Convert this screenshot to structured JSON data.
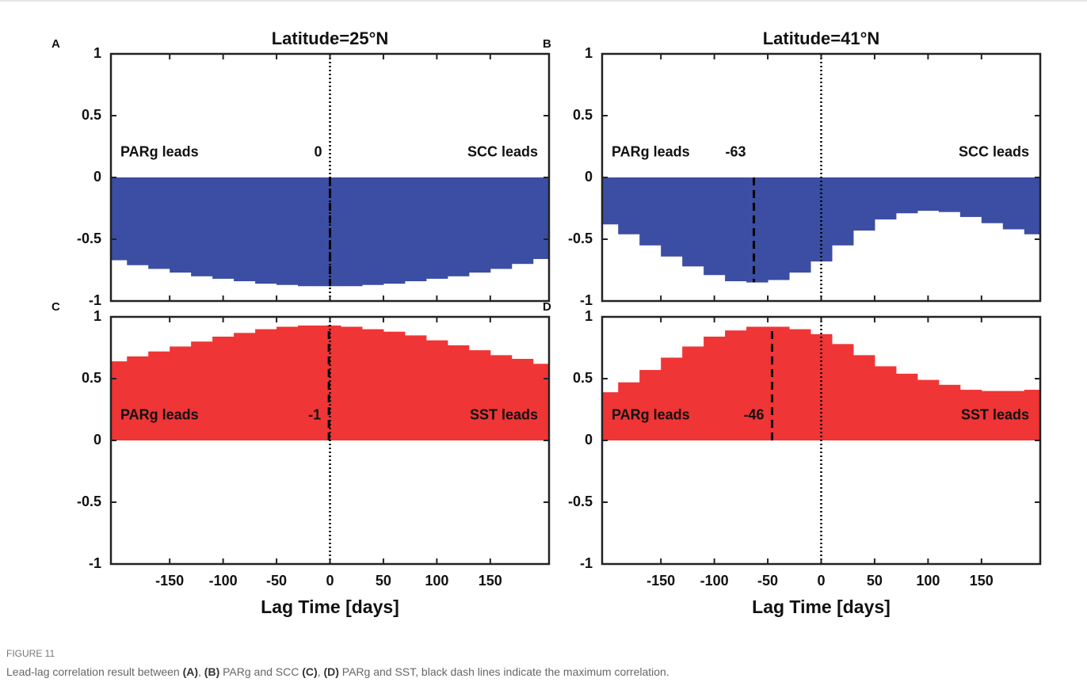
{
  "chart_data": [
    {
      "type": "bar",
      "panel": "A",
      "title": "Latitude=25°N",
      "color": "#3b4ea3",
      "x": [
        -200,
        -180,
        -160,
        -140,
        -120,
        -100,
        -80,
        -60,
        -40,
        -20,
        0,
        20,
        40,
        60,
        80,
        100,
        120,
        140,
        160,
        180,
        200
      ],
      "values": [
        -0.67,
        -0.71,
        -0.74,
        -0.77,
        -0.8,
        -0.82,
        -0.84,
        -0.86,
        -0.87,
        -0.88,
        -0.88,
        -0.88,
        -0.87,
        -0.86,
        -0.84,
        -0.82,
        -0.8,
        -0.77,
        -0.74,
        -0.7,
        -0.66
      ],
      "xlim": [
        -205,
        205
      ],
      "ylim": [
        -1,
        1
      ],
      "xticks": [
        -150,
        -100,
        -50,
        0,
        50,
        100,
        150
      ],
      "yticks": [
        -1,
        -0.5,
        0,
        0.5,
        1
      ],
      "show_xtick_labels": false,
      "left_note": "PARg leads",
      "right_note": "SCC leads",
      "max_lag": 0,
      "reference_x": 0
    },
    {
      "type": "bar",
      "panel": "B",
      "title": "Latitude=41°N",
      "color": "#3b4ea3",
      "x": [
        -200,
        -180,
        -160,
        -140,
        -120,
        -100,
        -80,
        -60,
        -40,
        -20,
        0,
        20,
        40,
        60,
        80,
        100,
        120,
        140,
        160,
        180,
        200
      ],
      "values": [
        -0.38,
        -0.46,
        -0.55,
        -0.64,
        -0.72,
        -0.79,
        -0.84,
        -0.85,
        -0.83,
        -0.77,
        -0.68,
        -0.55,
        -0.43,
        -0.34,
        -0.29,
        -0.27,
        -0.28,
        -0.32,
        -0.37,
        -0.42,
        -0.46
      ],
      "xlim": [
        -205,
        205
      ],
      "ylim": [
        -1,
        1
      ],
      "xticks": [
        -150,
        -100,
        -50,
        0,
        50,
        100,
        150
      ],
      "yticks": [
        -1,
        -0.5,
        0,
        0.5,
        1
      ],
      "show_xtick_labels": false,
      "left_note": "PARg leads",
      "right_note": "SCC leads",
      "max_lag": -63,
      "reference_x": 0
    },
    {
      "type": "bar",
      "panel": "C",
      "color": "#ef3535",
      "xlabel": "Lag Time [days]",
      "x": [
        -200,
        -180,
        -160,
        -140,
        -120,
        -100,
        -80,
        -60,
        -40,
        -20,
        0,
        20,
        40,
        60,
        80,
        100,
        120,
        140,
        160,
        180,
        200
      ],
      "values": [
        0.64,
        0.68,
        0.72,
        0.76,
        0.8,
        0.84,
        0.87,
        0.9,
        0.92,
        0.93,
        0.93,
        0.92,
        0.9,
        0.88,
        0.85,
        0.81,
        0.77,
        0.73,
        0.69,
        0.66,
        0.62
      ],
      "xlim": [
        -205,
        205
      ],
      "ylim": [
        -1,
        1
      ],
      "xticks": [
        -150,
        -100,
        -50,
        0,
        50,
        100,
        150
      ],
      "yticks": [
        -1,
        -0.5,
        0,
        0.5,
        1
      ],
      "show_xtick_labels": true,
      "left_note": "PARg leads",
      "right_note": "SST leads",
      "max_lag": -1,
      "reference_x": 0
    },
    {
      "type": "bar",
      "panel": "D",
      "color": "#ef3535",
      "xlabel": "Lag Time [days]",
      "x": [
        -200,
        -180,
        -160,
        -140,
        -120,
        -100,
        -80,
        -60,
        -40,
        -20,
        0,
        20,
        40,
        60,
        80,
        100,
        120,
        140,
        160,
        180,
        200
      ],
      "values": [
        0.39,
        0.47,
        0.57,
        0.67,
        0.76,
        0.84,
        0.89,
        0.92,
        0.92,
        0.9,
        0.86,
        0.78,
        0.69,
        0.6,
        0.54,
        0.49,
        0.45,
        0.41,
        0.4,
        0.4,
        0.41
      ],
      "xlim": [
        -205,
        205
      ],
      "ylim": [
        -1,
        1
      ],
      "xticks": [
        -150,
        -100,
        -50,
        0,
        50,
        100,
        150
      ],
      "yticks": [
        -1,
        -0.5,
        0,
        0.5,
        1
      ],
      "show_xtick_labels": true,
      "left_note": "PARg leads",
      "right_note": "SST leads",
      "max_lag": -46,
      "reference_x": 0
    }
  ],
  "caption": {
    "label": "FIGURE 11",
    "parts": [
      {
        "text": "Lead-lag correlation result between "
      },
      {
        "text": "(A)",
        "bold": true
      },
      {
        "text": ", "
      },
      {
        "text": "(B)",
        "bold": true
      },
      {
        "text": " PARg and SCC "
      },
      {
        "text": "(C)",
        "bold": true
      },
      {
        "text": ", "
      },
      {
        "text": "(D)",
        "bold": true
      },
      {
        "text": " PARg and SST, black dash lines indicate the maximum correlation."
      }
    ]
  }
}
